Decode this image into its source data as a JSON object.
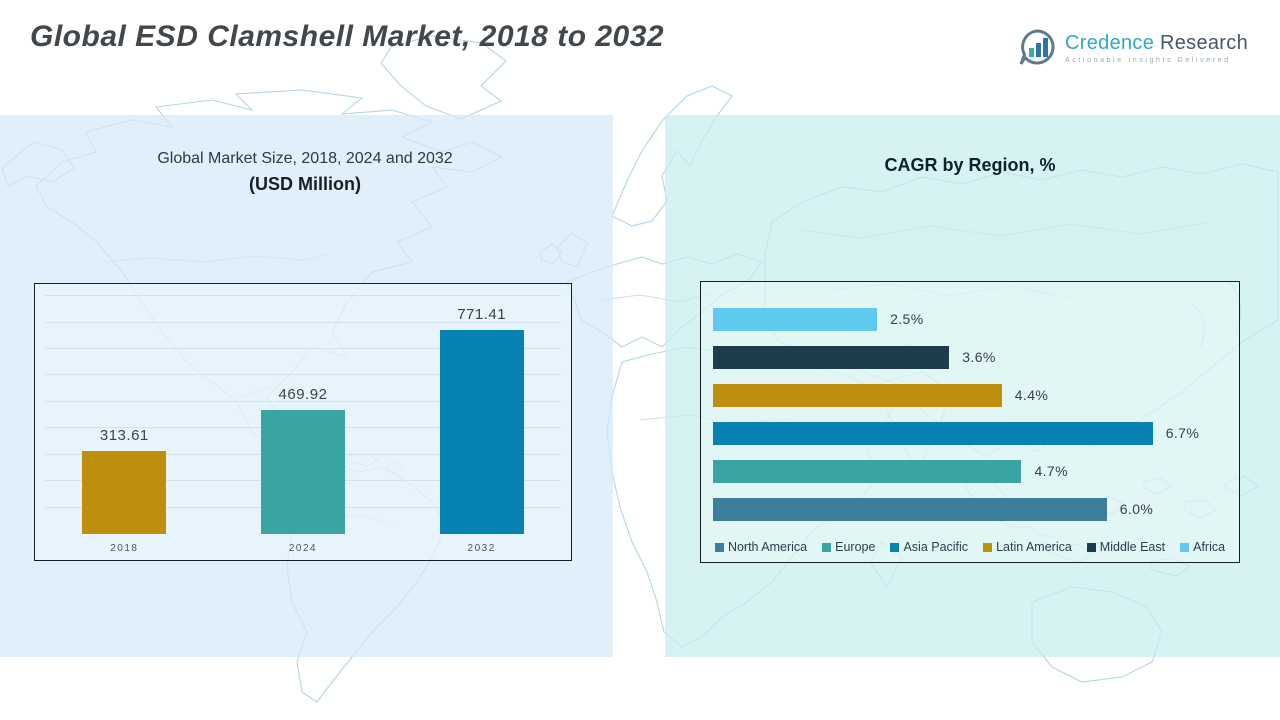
{
  "header": {
    "title": "Global ESD Clamshell Market, 2018 to 2032",
    "logo": {
      "brand_primary": "Credence ",
      "brand_secondary": "Research",
      "tagline": "Actionable Insights Delivered",
      "brand_primary_color": "#2FA9C6",
      "brand_secondary_color": "#43596B"
    }
  },
  "chart_data": [
    {
      "type": "bar",
      "title": "Global Market Size, 2018, 2024 and 2032",
      "subtitle": "(USD Million)",
      "categories": [
        "2018",
        "2024",
        "2032"
      ],
      "values": [
        313.61,
        469.92,
        771.41
      ],
      "labels": [
        "313.61",
        "469.92",
        "771.41"
      ],
      "colors": [
        "#BE8E0D",
        "#38A5A4",
        "#0782B2"
      ],
      "ylabel": "",
      "xlabel": "",
      "ylim": [
        0,
        950
      ],
      "gridlines": true,
      "gridline_step": 100
    },
    {
      "type": "bar-horizontal",
      "title": "CAGR by Region, %",
      "categories": [
        "Africa",
        "Middle East",
        "Latin America",
        "Asia Pacific",
        "Europe",
        "North America"
      ],
      "values": [
        2.5,
        3.6,
        4.4,
        6.7,
        4.7,
        6.0
      ],
      "labels": [
        "2.5%",
        "3.6%",
        "4.4%",
        "6.7%",
        "4.7%",
        "6.0%"
      ],
      "colors": [
        "#5FC9EF",
        "#1D3C4C",
        "#BE8E0D",
        "#0782B2",
        "#38A5A4",
        "#3E7E9D"
      ],
      "xlim": [
        0,
        8
      ],
      "gridlines": false,
      "legend_position": "bottom",
      "legend": [
        {
          "label": "North America",
          "color": "#3E7E9D"
        },
        {
          "label": "Europe",
          "color": "#38A5A4"
        },
        {
          "label": "Asia Pacific",
          "color": "#0782B2"
        },
        {
          "label": "Latin America",
          "color": "#BE8E0D"
        },
        {
          "label": "Middle East",
          "color": "#1D3C4C"
        },
        {
          "label": "Africa",
          "color": "#5FC9EF"
        }
      ]
    }
  ]
}
